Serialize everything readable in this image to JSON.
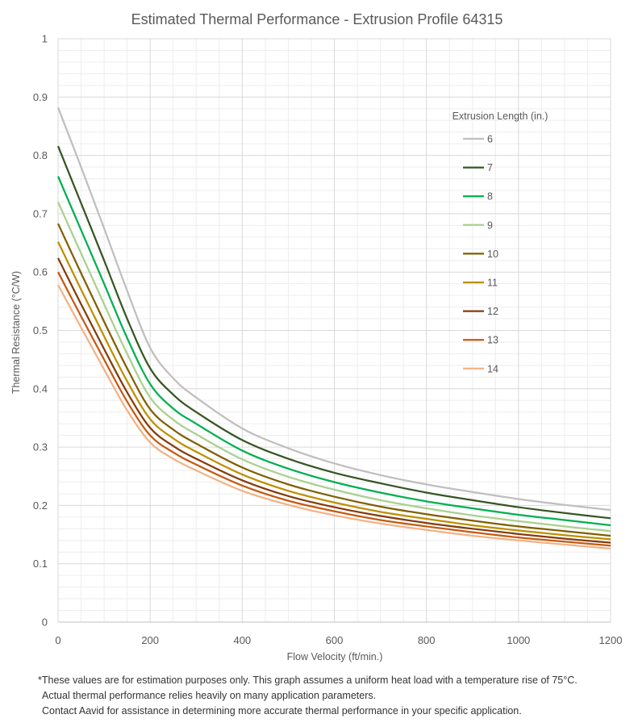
{
  "chart_data": {
    "type": "line",
    "title": "Estimated Thermal Performance - Extrusion Profile 64315",
    "xlabel": "Flow Velocity (ft/min.)",
    "ylabel": "Thermal Resistance (°C/W)",
    "xlim": [
      0,
      1200
    ],
    "ylim": [
      0,
      1
    ],
    "xticks": [
      0,
      200,
      400,
      600,
      800,
      1000,
      1200
    ],
    "yticks": [
      0,
      0.1,
      0.2,
      0.3,
      0.4,
      0.5,
      0.6,
      0.7,
      0.8,
      0.9,
      1
    ],
    "grid": true,
    "legend_title": "Extrusion Length (in.)",
    "legend_position": "right",
    "x": [
      0,
      50,
      100,
      150,
      200,
      250,
      300,
      400,
      500,
      600,
      700,
      800,
      900,
      1000,
      1100,
      1200
    ],
    "series": [
      {
        "name": "6",
        "color": "#bfbfbf",
        "values": [
          0.882,
          0.78,
          0.675,
          0.568,
          0.47,
          0.418,
          0.385,
          0.332,
          0.298,
          0.272,
          0.252,
          0.236,
          0.223,
          0.211,
          0.201,
          0.192
        ]
      },
      {
        "name": "7",
        "color": "#375623",
        "values": [
          0.816,
          0.718,
          0.62,
          0.52,
          0.435,
          0.39,
          0.36,
          0.312,
          0.28,
          0.256,
          0.238,
          0.222,
          0.209,
          0.197,
          0.187,
          0.178
        ]
      },
      {
        "name": "8",
        "color": "#00b050",
        "values": [
          0.764,
          0.672,
          0.58,
          0.487,
          0.408,
          0.366,
          0.34,
          0.294,
          0.263,
          0.24,
          0.222,
          0.207,
          0.195,
          0.184,
          0.175,
          0.166
        ]
      },
      {
        "name": "9",
        "color": "#a9d08e",
        "values": [
          0.72,
          0.632,
          0.545,
          0.46,
          0.385,
          0.347,
          0.322,
          0.279,
          0.249,
          0.227,
          0.209,
          0.195,
          0.183,
          0.173,
          0.164,
          0.156
        ]
      },
      {
        "name": "10",
        "color": "#7f6000",
        "values": [
          0.683,
          0.598,
          0.515,
          0.435,
          0.365,
          0.33,
          0.306,
          0.265,
          0.236,
          0.215,
          0.198,
          0.185,
          0.174,
          0.164,
          0.156,
          0.148
        ]
      },
      {
        "name": "11",
        "color": "#bf8f00",
        "values": [
          0.652,
          0.57,
          0.49,
          0.413,
          0.348,
          0.315,
          0.292,
          0.253,
          0.225,
          0.205,
          0.189,
          0.177,
          0.166,
          0.157,
          0.149,
          0.142
        ]
      },
      {
        "name": "12",
        "color": "#843c0c",
        "values": [
          0.624,
          0.545,
          0.468,
          0.394,
          0.333,
          0.302,
          0.28,
          0.243,
          0.216,
          0.197,
          0.182,
          0.17,
          0.16,
          0.151,
          0.143,
          0.136
        ]
      },
      {
        "name": "13",
        "color": "#c55a11",
        "values": [
          0.6,
          0.524,
          0.45,
          0.378,
          0.32,
          0.291,
          0.27,
          0.234,
          0.208,
          0.19,
          0.175,
          0.164,
          0.154,
          0.145,
          0.138,
          0.131
        ]
      },
      {
        "name": "14",
        "color": "#f4b183",
        "values": [
          0.578,
          0.505,
          0.433,
          0.363,
          0.308,
          0.28,
          0.26,
          0.225,
          0.201,
          0.183,
          0.169,
          0.158,
          0.148,
          0.14,
          0.133,
          0.126
        ]
      }
    ]
  },
  "footnotes": {
    "line1": "*These values are for estimation purposes only. This graph assumes a uniform heat load with a temperature rise of 75°C.",
    "line2": "Actual thermal performance relies heavily on many application parameters.",
    "line3": "Contact Aavid for assistance in determining more accurate thermal performance in your specific application."
  }
}
